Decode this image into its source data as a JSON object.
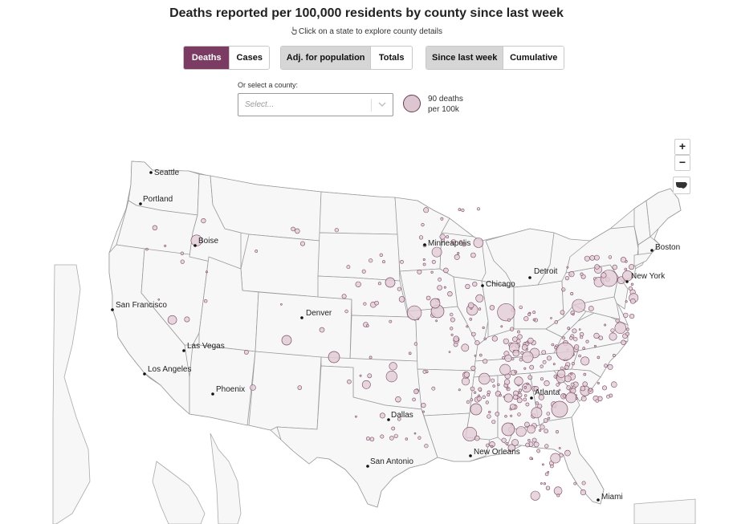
{
  "header": {
    "title": "Deaths reported per 100,000 residents by county since last week",
    "hint": "Click on a state to explore county details"
  },
  "toggles": {
    "metric": {
      "options": [
        "Deaths",
        "Cases"
      ],
      "selected": "Deaths"
    },
    "scale": {
      "options": [
        "Adj. for population",
        "Totals"
      ],
      "selected": "Adj. for population"
    },
    "period": {
      "options": [
        "Since last week",
        "Cumulative"
      ],
      "selected": "Since last week"
    }
  },
  "county_select": {
    "label": "Or select a county:",
    "placeholder": "Select..."
  },
  "legend": {
    "line1": "90 deaths",
    "line2": "per 100k",
    "fill_color": "#dcc7d1",
    "stroke_color": "#6a3a55"
  },
  "zoom_controls": {
    "zoom_in": "+",
    "zoom_out": "−",
    "reset_icon": "us-map-icon"
  },
  "colors": {
    "accent": "#7b3b63",
    "bubble_fill": "#e2ccd6",
    "bubble_stroke": "#7a4a63",
    "state_fill": "#f7f7f7",
    "state_stroke": "#9a9a9a"
  },
  "cities": [
    {
      "name": "Seattle"
    },
    {
      "name": "Portland"
    },
    {
      "name": "Boise"
    },
    {
      "name": "San Francisco"
    },
    {
      "name": "Las Vegas"
    },
    {
      "name": "Los Angeles"
    },
    {
      "name": "Phoenix"
    },
    {
      "name": "Denver"
    },
    {
      "name": "Minneapolis"
    },
    {
      "name": "Chicago"
    },
    {
      "name": "Detroit"
    },
    {
      "name": "Boston"
    },
    {
      "name": "New York"
    },
    {
      "name": "Atlanta"
    },
    {
      "name": "Dallas"
    },
    {
      "name": "San Antonio"
    },
    {
      "name": "New Orleans"
    },
    {
      "name": "Miami"
    }
  ]
}
